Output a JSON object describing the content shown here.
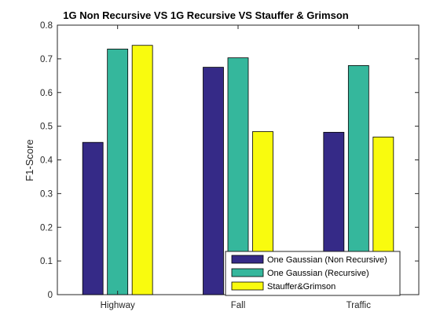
{
  "chart_data": {
    "type": "bar",
    "title": "1G Non Recursive VS 1G Recursive VS Stauffer & Grimson",
    "xlabel": "",
    "ylabel": "F1-Score",
    "ylim": [
      0,
      0.8
    ],
    "yticks": [
      "0",
      "0.1",
      "0.2",
      "0.3",
      "0.4",
      "0.5",
      "0.6",
      "0.7",
      "0.8"
    ],
    "grid": false,
    "legend_position": "bottom-right",
    "categories": [
      "Highway",
      "Fall",
      "Traffic"
    ],
    "series": [
      {
        "name": "One Gaussian (Non Recursive)",
        "color": "#352a87",
        "values": [
          0.452,
          0.675,
          0.482
        ]
      },
      {
        "name": "One Gaussian (Recursive)",
        "color": "#35b79c",
        "values": [
          0.729,
          0.703,
          0.68
        ]
      },
      {
        "name": "Stauffer&Grimson",
        "color": "#f9fb0e",
        "values": [
          0.74,
          0.484,
          0.468
        ]
      }
    ]
  }
}
